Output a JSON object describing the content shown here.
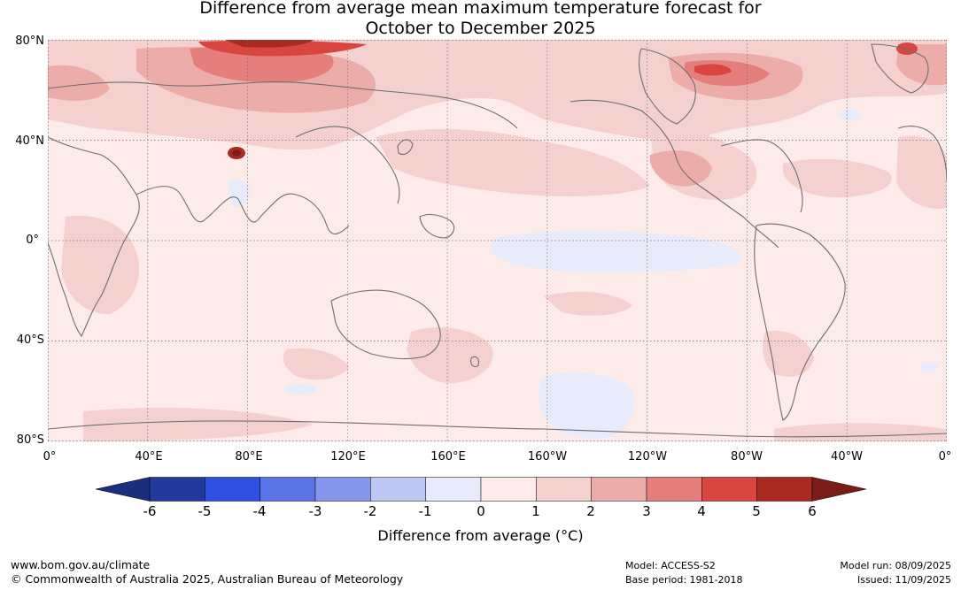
{
  "header": {
    "title_line1": "Difference from average mean maximum temperature forecast for",
    "title_line2": "October to December 2025"
  },
  "map": {
    "projection": "equirectangular",
    "lat_labels": [
      "80°N",
      "40°N",
      "0°",
      "40°S",
      "80°S"
    ],
    "lon_labels": [
      "0°",
      "40°E",
      "80°E",
      "120°E",
      "160°E",
      "160°W",
      "120°W",
      "80°W",
      "40°W",
      "0°"
    ],
    "colors": {
      "ocean_default": "#fcebe9",
      "coastline": "#6e6e6e",
      "gridline": "#6e6e6e"
    }
  },
  "colorbar": {
    "ticks": [
      "-6",
      "-5",
      "-4",
      "-3",
      "-2",
      "-1",
      "0",
      "1",
      "2",
      "3",
      "4",
      "5",
      "6"
    ],
    "colors": [
      "#233a9d",
      "#2e4fe0",
      "#5a74e8",
      "#8597ec",
      "#bfc8f2",
      "#e8ebfb",
      "#fcebe9",
      "#f4d1cf",
      "#ecadaa",
      "#e57f7b",
      "#d94640",
      "#a82a23"
    ],
    "under_color": "#1c2e7e",
    "over_color": "#7b1c17",
    "label": "Difference from average (°C)"
  },
  "footer": {
    "website": "www.bom.gov.au/climate",
    "copyright": "© Commonwealth of Australia 2025, Australian Bureau of Meteorology",
    "model": "Model: ACCESS-S2",
    "base_period": "Base period: 1981-2018",
    "model_run": "Model run: 08/09/2025",
    "issued": "Issued: 11/09/2025"
  }
}
